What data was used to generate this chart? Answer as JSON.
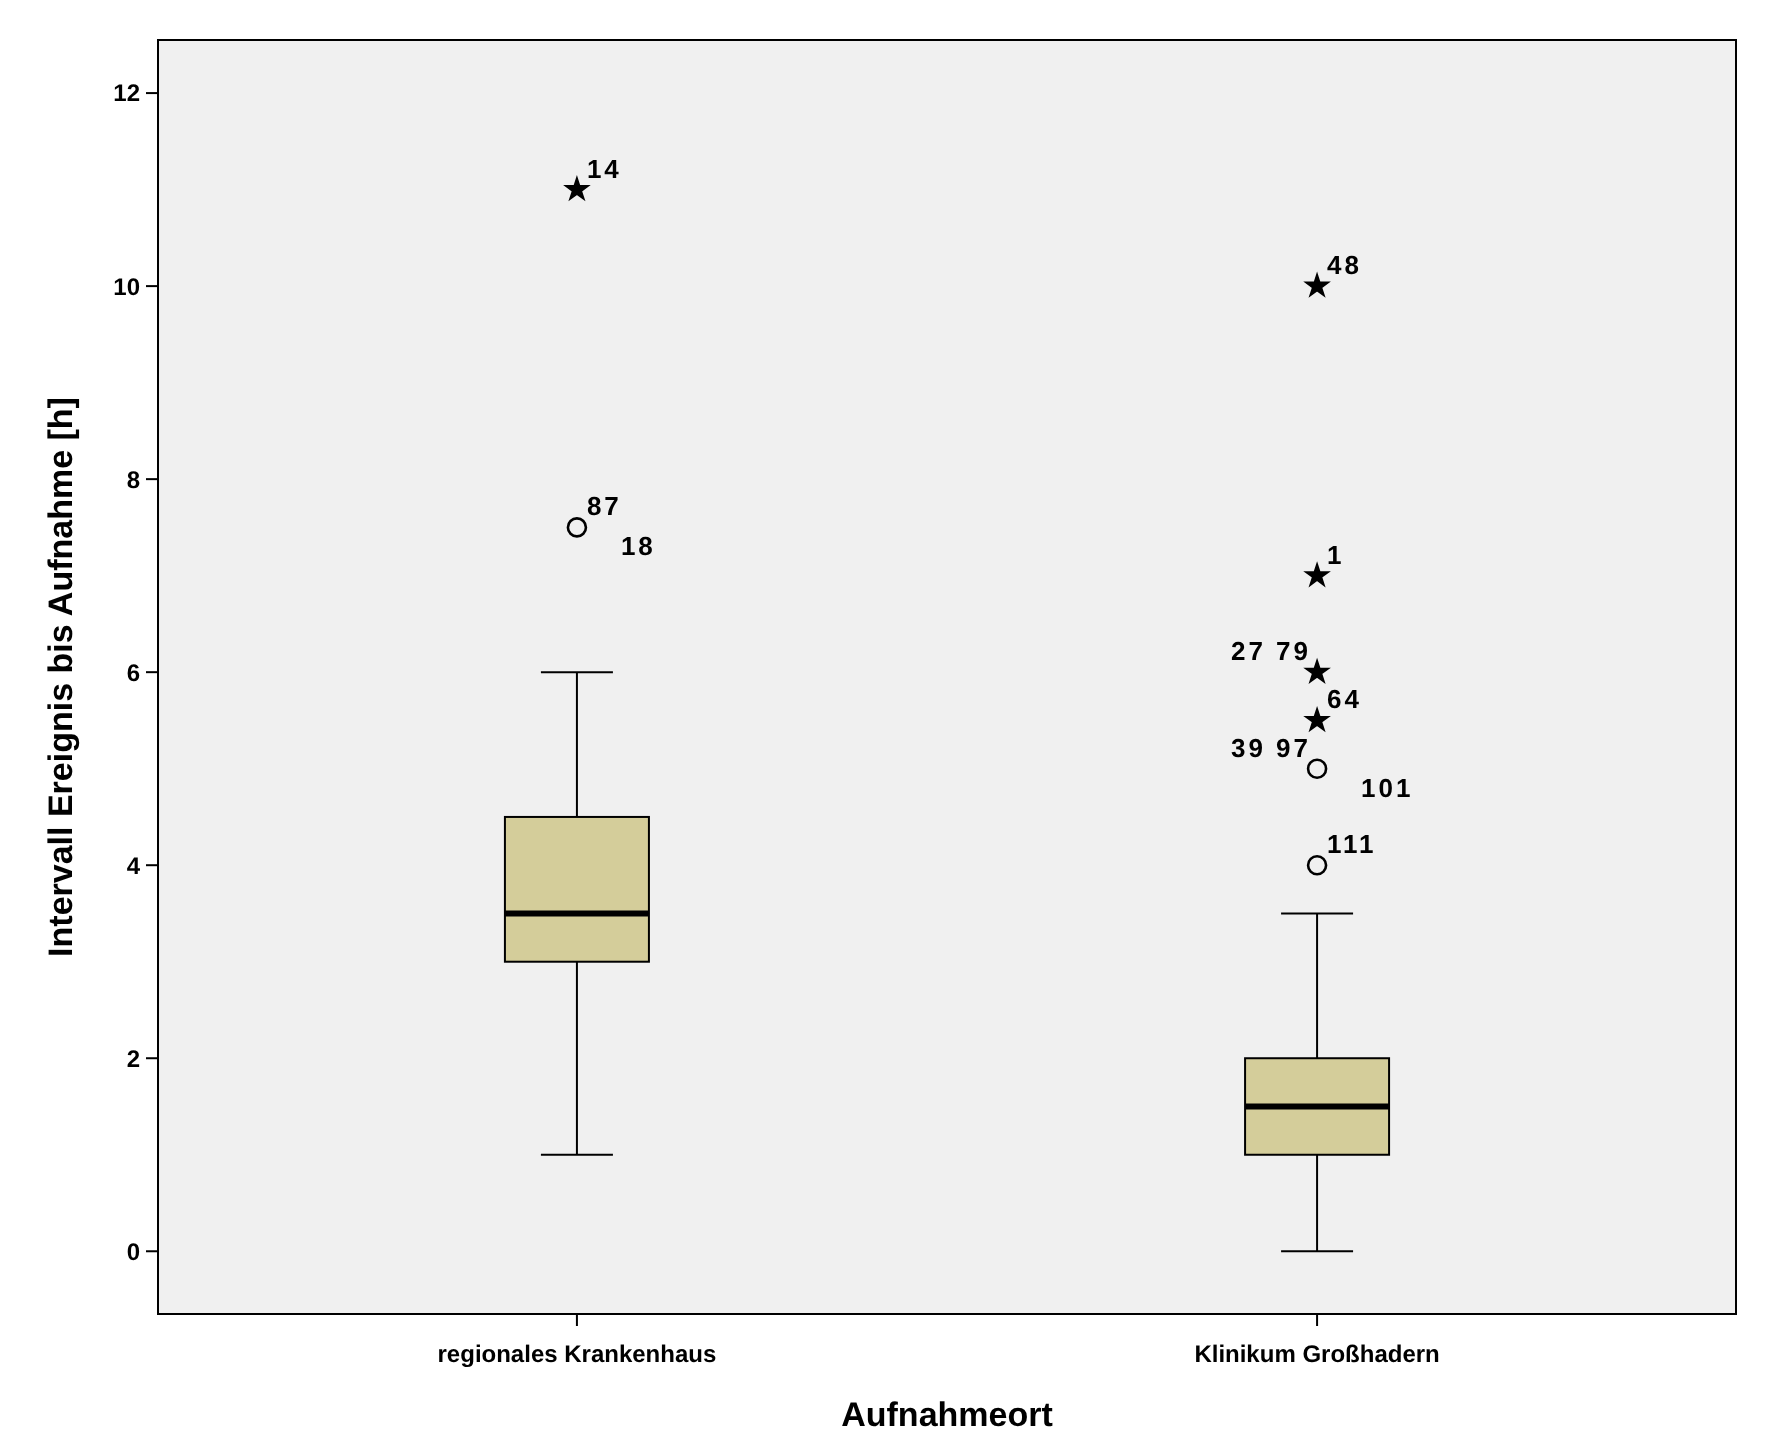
{
  "chart_data": {
    "type": "box",
    "xlabel": "Aufnahmeort",
    "ylabel": "Intervall Ereignis bis Aufnahme [h]",
    "categories": [
      "regionales Krankenhaus",
      "Klinikum Großhadern"
    ],
    "color": "#d4cd9a",
    "ylim": [
      -0.65,
      12.55
    ],
    "yticks": [
      0,
      2,
      4,
      6,
      8,
      10,
      12
    ],
    "boxes": [
      {
        "low": 1,
        "q1": 3,
        "median": 3.5,
        "q3": 4.5,
        "high": 6
      },
      {
        "low": 0,
        "q1": 1,
        "median": 1.5,
        "q3": 2,
        "high": 3.5
      }
    ],
    "series": [
      {
        "type": "scatter",
        "marker": "circle",
        "color": "#000000",
        "x": [
          "regionales Krankenhaus",
          "Klinikum Großhadern",
          "Klinikum Großhadern"
        ],
        "values": [
          7.5,
          4,
          5
        ]
      },
      {
        "type": "scatter",
        "marker": "star",
        "color": "#000000",
        "x": [
          "regionales Krankenhaus",
          "Klinikum Großhadern",
          "Klinikum Großhadern",
          "Klinikum Großhadern",
          "Klinikum Großhadern"
        ],
        "values": [
          11,
          10,
          7,
          6,
          5.5
        ]
      }
    ],
    "annotations": [
      {
        "text": "14",
        "x": "regionales Krankenhaus",
        "y": 11
      },
      {
        "text": "87",
        "x": "regionales Krankenhaus",
        "y": 7.5
      },
      {
        "text": "18",
        "x": "regionales Krankenhaus",
        "y": 7.5
      },
      {
        "text": "48",
        "x": "Klinikum Großhadern",
        "y": 10
      },
      {
        "text": "1",
        "x": "Klinikum Großhadern",
        "y": 7
      },
      {
        "text": "27 79",
        "x": "Klinikum Großhadern",
        "y": 6
      },
      {
        "text": "64",
        "x": "Klinikum Großhadern",
        "y": 5.5
      },
      {
        "text": "39 97",
        "x": "Klinikum Großhadern",
        "y": 5
      },
      {
        "text": "101",
        "x": "Klinikum Großhadern",
        "y": 5
      },
      {
        "text": "111",
        "x": "Klinikum Großhadern",
        "y": 4
      }
    ]
  }
}
